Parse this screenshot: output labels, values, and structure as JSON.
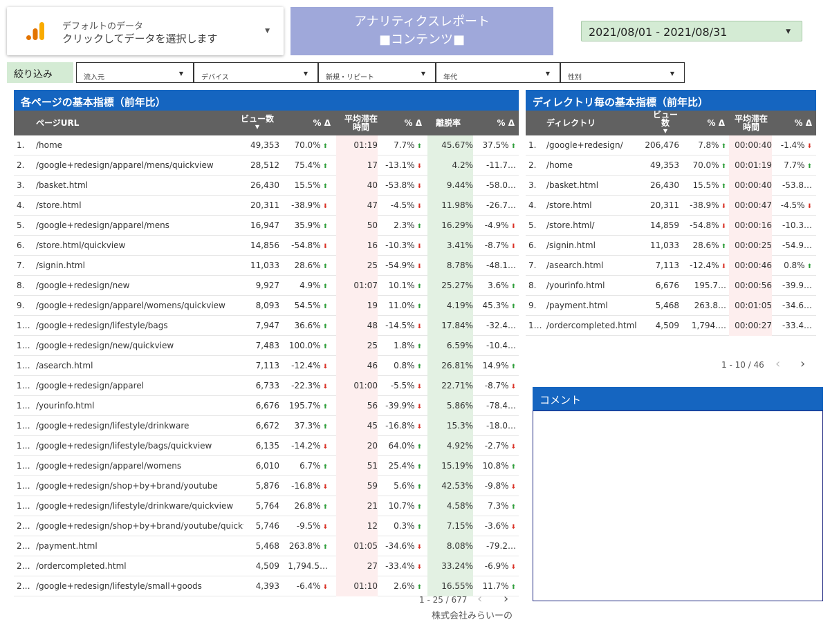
{
  "datasource": {
    "line1": "デフォルトのデータ",
    "line2": "クリックしてデータを選択します"
  },
  "title": {
    "line1": "アナリティクスレポート",
    "line2": "■コンテンツ■"
  },
  "date_range": "2021/08/01 - 2021/08/31",
  "filter": {
    "label": "絞り込み",
    "controls": [
      "流入元",
      "デバイス",
      "新規・リピート",
      "年代",
      "性別"
    ]
  },
  "colors": {
    "header_blue": "#1565c0",
    "title_bg": "#9fa8da",
    "date_bg": "#d4ebd4",
    "bounce_bg": "#e3f1e3",
    "time_bg": "#fdeeee",
    "up": "#2e9e3a",
    "down": "#d93025"
  },
  "left_table": {
    "title": "各ページの基本指標（前年比）",
    "headers": {
      "url": "ページURL",
      "views": "ビュー数",
      "pct1": "% Δ",
      "avg_time": "平均滞在時間",
      "pct2": "% Δ",
      "bounce": "離脱率",
      "pct3": "% Δ"
    },
    "rows": [
      {
        "idx": "1.",
        "url": "/home",
        "views": "49,353",
        "p1": "70.0%",
        "d1": "up",
        "time": "01:19",
        "p2": "7.7%",
        "d2": "up",
        "bounce": "45.67%",
        "p3": "37.5%",
        "d3": "up"
      },
      {
        "idx": "2.",
        "url": "/google+redesign/apparel/mens/quickview",
        "views": "28,512",
        "p1": "75.4%",
        "d1": "up",
        "time": "17",
        "p2": "-13.1%",
        "d2": "down",
        "bounce": "4.2%",
        "p3": "-11.7…",
        "d3": ""
      },
      {
        "idx": "3.",
        "url": "/basket.html",
        "views": "26,430",
        "p1": "15.5%",
        "d1": "up",
        "time": "40",
        "p2": "-53.8%",
        "d2": "down",
        "bounce": "9.44%",
        "p3": "-58.0…",
        "d3": ""
      },
      {
        "idx": "4.",
        "url": "/store.html",
        "views": "20,311",
        "p1": "-38.9%",
        "d1": "down",
        "time": "47",
        "p2": "-4.5%",
        "d2": "down",
        "bounce": "11.98%",
        "p3": "-26.7…",
        "d3": ""
      },
      {
        "idx": "5.",
        "url": "/google+redesign/apparel/mens",
        "views": "16,947",
        "p1": "35.9%",
        "d1": "up",
        "time": "50",
        "p2": "2.3%",
        "d2": "up",
        "bounce": "16.29%",
        "p3": "-4.9%",
        "d3": "down"
      },
      {
        "idx": "6.",
        "url": "/store.html/quickview",
        "views": "14,856",
        "p1": "-54.8%",
        "d1": "down",
        "time": "16",
        "p2": "-10.3%",
        "d2": "down",
        "bounce": "3.41%",
        "p3": "-8.7%",
        "d3": "down"
      },
      {
        "idx": "7.",
        "url": "/signin.html",
        "views": "11,033",
        "p1": "28.6%",
        "d1": "up",
        "time": "25",
        "p2": "-54.9%",
        "d2": "down",
        "bounce": "8.78%",
        "p3": "-48.1…",
        "d3": ""
      },
      {
        "idx": "8.",
        "url": "/google+redesign/new",
        "views": "9,927",
        "p1": "4.9%",
        "d1": "up",
        "time": "01:07",
        "p2": "10.1%",
        "d2": "up",
        "bounce": "25.27%",
        "p3": "3.6%",
        "d3": "up"
      },
      {
        "idx": "9.",
        "url": "/google+redesign/apparel/womens/quickview",
        "views": "8,093",
        "p1": "54.5%",
        "d1": "up",
        "time": "19",
        "p2": "11.0%",
        "d2": "up",
        "bounce": "4.19%",
        "p3": "45.3%",
        "d3": "up"
      },
      {
        "idx": "1…",
        "url": "/google+redesign/lifestyle/bags",
        "views": "7,947",
        "p1": "36.6%",
        "d1": "up",
        "time": "48",
        "p2": "-14.5%",
        "d2": "down",
        "bounce": "17.84%",
        "p3": "-32.4…",
        "d3": ""
      },
      {
        "idx": "1…",
        "url": "/google+redesign/new/quickview",
        "views": "7,483",
        "p1": "100.0%",
        "d1": "up",
        "time": "25",
        "p2": "1.8%",
        "d2": "up",
        "bounce": "6.59%",
        "p3": "-10.4…",
        "d3": ""
      },
      {
        "idx": "1…",
        "url": "/asearch.html",
        "views": "7,113",
        "p1": "-12.4%",
        "d1": "down",
        "time": "46",
        "p2": "0.8%",
        "d2": "up",
        "bounce": "26.81%",
        "p3": "14.9%",
        "d3": "up"
      },
      {
        "idx": "1…",
        "url": "/google+redesign/apparel",
        "views": "6,733",
        "p1": "-22.3%",
        "d1": "down",
        "time": "01:00",
        "p2": "-5.5%",
        "d2": "down",
        "bounce": "22.71%",
        "p3": "-8.7%",
        "d3": "down"
      },
      {
        "idx": "1…",
        "url": "/yourinfo.html",
        "views": "6,676",
        "p1": "195.7%",
        "d1": "up",
        "time": "56",
        "p2": "-39.9%",
        "d2": "down",
        "bounce": "5.86%",
        "p3": "-78.4…",
        "d3": ""
      },
      {
        "idx": "1…",
        "url": "/google+redesign/lifestyle/drinkware",
        "views": "6,672",
        "p1": "37.3%",
        "d1": "up",
        "time": "45",
        "p2": "-16.8%",
        "d2": "down",
        "bounce": "15.3%",
        "p3": "-18.0…",
        "d3": ""
      },
      {
        "idx": "1…",
        "url": "/google+redesign/lifestyle/bags/quickview",
        "views": "6,135",
        "p1": "-14.2%",
        "d1": "down",
        "time": "20",
        "p2": "64.0%",
        "d2": "up",
        "bounce": "4.92%",
        "p3": "-2.7%",
        "d3": "down"
      },
      {
        "idx": "1…",
        "url": "/google+redesign/apparel/womens",
        "views": "6,010",
        "p1": "6.7%",
        "d1": "up",
        "time": "51",
        "p2": "25.4%",
        "d2": "up",
        "bounce": "15.19%",
        "p3": "10.8%",
        "d3": "up"
      },
      {
        "idx": "1…",
        "url": "/google+redesign/shop+by+brand/youtube",
        "views": "5,876",
        "p1": "-16.8%",
        "d1": "down",
        "time": "59",
        "p2": "5.6%",
        "d2": "up",
        "bounce": "42.53%",
        "p3": "-9.8%",
        "d3": "down"
      },
      {
        "idx": "1…",
        "url": "/google+redesign/lifestyle/drinkware/quickview",
        "views": "5,764",
        "p1": "26.8%",
        "d1": "up",
        "time": "21",
        "p2": "10.7%",
        "d2": "up",
        "bounce": "4.58%",
        "p3": "7.3%",
        "d3": "up"
      },
      {
        "idx": "2…",
        "url": "/google+redesign/shop+by+brand/youtube/quickview",
        "views": "5,746",
        "p1": "-9.5%",
        "d1": "down",
        "time": "12",
        "p2": "0.3%",
        "d2": "up",
        "bounce": "7.15%",
        "p3": "-3.6%",
        "d3": "down"
      },
      {
        "idx": "2…",
        "url": "/payment.html",
        "views": "5,468",
        "p1": "263.8%",
        "d1": "up",
        "time": "01:05",
        "p2": "-34.6%",
        "d2": "down",
        "bounce": "8.08%",
        "p3": "-79.2…",
        "d3": ""
      },
      {
        "idx": "2…",
        "url": "/ordercompleted.html",
        "views": "4,509",
        "p1": "1,794.5…",
        "d1": "",
        "time": "27",
        "p2": "-33.4%",
        "d2": "down",
        "bounce": "33.24%",
        "p3": "-6.9%",
        "d3": "down"
      },
      {
        "idx": "2…",
        "url": "/google+redesign/lifestyle/small+goods",
        "views": "4,393",
        "p1": "-6.4%",
        "d1": "down",
        "time": "01:10",
        "p2": "2.6%",
        "d2": "up",
        "bounce": "16.55%",
        "p3": "11.7%",
        "d3": "up"
      }
    ],
    "pager": "1 - 25 / 677"
  },
  "right_table": {
    "title": "ディレクトリ毎の基本指標（前年比）",
    "headers": {
      "dir": "ディレクトリ",
      "views": "ビュー数",
      "pct1": "% Δ",
      "avg_time": "平均滞在時間",
      "pct2": "% Δ"
    },
    "rows": [
      {
        "idx": "1.",
        "dir": "/google+redesign/",
        "views": "206,476",
        "p1": "7.8%",
        "d1": "up",
        "time": "00:00:40",
        "p2": "-1.4%",
        "d2": "down"
      },
      {
        "idx": "2.",
        "dir": "/home",
        "views": "49,353",
        "p1": "70.0%",
        "d1": "up",
        "time": "00:01:19",
        "p2": "7.7%",
        "d2": "up"
      },
      {
        "idx": "3.",
        "dir": "/basket.html",
        "views": "26,430",
        "p1": "15.5%",
        "d1": "up",
        "time": "00:00:40",
        "p2": "-53.8…",
        "d2": ""
      },
      {
        "idx": "4.",
        "dir": "/store.html",
        "views": "20,311",
        "p1": "-38.9%",
        "d1": "down",
        "time": "00:00:47",
        "p2": "-4.5%",
        "d2": "down"
      },
      {
        "idx": "5.",
        "dir": "/store.html/",
        "views": "14,859",
        "p1": "-54.8%",
        "d1": "down",
        "time": "00:00:16",
        "p2": "-10.3…",
        "d2": ""
      },
      {
        "idx": "6.",
        "dir": "/signin.html",
        "views": "11,033",
        "p1": "28.6%",
        "d1": "up",
        "time": "00:00:25",
        "p2": "-54.9…",
        "d2": ""
      },
      {
        "idx": "7.",
        "dir": "/asearch.html",
        "views": "7,113",
        "p1": "-12.4%",
        "d1": "down",
        "time": "00:00:46",
        "p2": "0.8%",
        "d2": "up"
      },
      {
        "idx": "8.",
        "dir": "/yourinfo.html",
        "views": "6,676",
        "p1": "195.7…",
        "d1": "",
        "time": "00:00:56",
        "p2": "-39.9…",
        "d2": ""
      },
      {
        "idx": "9.",
        "dir": "/payment.html",
        "views": "5,468",
        "p1": "263.8…",
        "d1": "",
        "time": "00:01:05",
        "p2": "-34.6…",
        "d2": ""
      },
      {
        "idx": "1…",
        "dir": "/ordercompleted.html",
        "views": "4,509",
        "p1": "1,794.…",
        "d1": "",
        "time": "00:00:27",
        "p2": "-33.4…",
        "d2": ""
      }
    ],
    "pager": "1 - 10 / 46"
  },
  "comment": {
    "title": "コメント"
  },
  "footer": "株式会社みらいーの"
}
